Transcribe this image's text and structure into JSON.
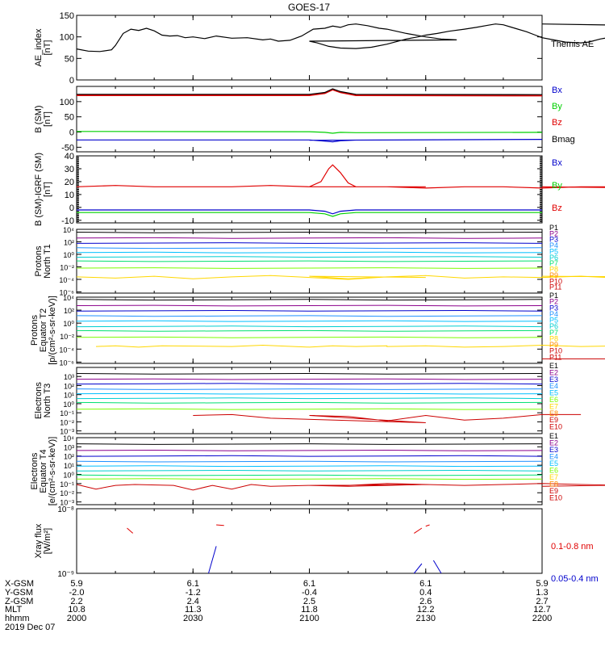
{
  "title": "GOES-17",
  "colors": {
    "black": "#000000",
    "red": "#e00000",
    "green": "#00d000",
    "blue": "#0000cc",
    "darkred": "#8b0000",
    "channels": [
      "#000000",
      "#8b008b",
      "#0000cd",
      "#1e90ff",
      "#00bfff",
      "#00ced1",
      "#00e070",
      "#7cfc00",
      "#ffd700",
      "#ff8c00",
      "#cc0000"
    ]
  },
  "chart_data": [
    {
      "type": "line",
      "panel": "ae",
      "ylabel": "AE_index\n[nT]",
      "ylim": [
        0,
        150
      ],
      "yticks": [
        0,
        50,
        100,
        150
      ],
      "legend": [
        {
          "label": "Themis AE",
          "color": "#000000"
        }
      ],
      "series": [
        {
          "name": "Themis AE",
          "color": "#000000",
          "x": [
            2000,
            2003,
            2006,
            2009,
            2010,
            2012,
            2014,
            2016,
            2018,
            2020,
            2022,
            2024,
            2026,
            2028,
            2030,
            2033,
            2036,
            2040,
            2044,
            2048,
            2050,
            2052,
            2055,
            2058,
            2061,
            2064,
            2066,
            2068,
            2070,
            2072,
            2075,
            2078,
            2080,
            2085,
            2090,
            2094,
            2098,
            2100,
            2102,
            2105,
            2108,
            2112,
            2116,
            2120,
            2125,
            2128,
            2130,
            2133,
            2136,
            2140,
            2143,
            2146,
            2148,
            2150,
            2153,
            2156,
            2158,
            2160,
            2163,
            2166,
            2170,
            2172,
            2175,
            2178,
            2180,
            2184,
            2188,
            2192,
            2196,
            2200
          ],
          "y": [
            72,
            67,
            66,
            70,
            80,
            108,
            118,
            115,
            120,
            114,
            104,
            102,
            103,
            98,
            100,
            96,
            102,
            97,
            98,
            93,
            95,
            90,
            92,
            102,
            118,
            120,
            125,
            122,
            128,
            130,
            126,
            120,
            118,
            108,
            100,
            95,
            93,
            90,
            86,
            78,
            74,
            73,
            76,
            83,
            95,
            100,
            104,
            108,
            113,
            118,
            122,
            127,
            130,
            128,
            120,
            112,
            105,
            98,
            93,
            88,
            86,
            88,
            95,
            100,
            90,
            96,
            104,
            118,
            125,
            130
          ]
        }
      ]
    },
    {
      "type": "line",
      "panel": "b_sm",
      "ylabel": "B (SM)\n[nT]",
      "ylim": [
        -65,
        150
      ],
      "yticks": [
        -50,
        0,
        50,
        100
      ],
      "legend": [
        {
          "label": "Bx",
          "color": "#0000cc"
        },
        {
          "label": "By",
          "color": "#00d000"
        },
        {
          "label": "Bz",
          "color": "#e00000"
        },
        {
          "label": "Bmag",
          "color": "#000000"
        }
      ],
      "series": [
        {
          "name": "Bz",
          "color": "#e00000",
          "x": [
            2000,
            2060,
            2064,
            2066,
            2068,
            2072,
            2200
          ],
          "y": [
            121,
            121,
            128,
            140,
            131,
            121,
            120
          ]
        },
        {
          "name": "Bmag",
          "color": "#000000",
          "x": [
            2000,
            2060,
            2064,
            2066,
            2068,
            2072,
            2200
          ],
          "y": [
            124,
            124,
            130,
            142,
            133,
            124,
            123
          ]
        },
        {
          "name": "By",
          "color": "#00d000",
          "x": [
            2000,
            2060,
            2064,
            2066,
            2068,
            2072,
            2200
          ],
          "y": [
            2,
            1,
            -1,
            -4,
            -1,
            -2,
            -1
          ]
        },
        {
          "name": "Bx",
          "color": "#0000cc",
          "x": [
            2000,
            2030,
            2060,
            2064,
            2066,
            2068,
            2072,
            2100,
            2200
          ],
          "y": [
            -26,
            -26,
            -26,
            -30,
            -32,
            -29,
            -27,
            -27,
            -24
          ]
        }
      ]
    },
    {
      "type": "line",
      "panel": "b_igrf",
      "ylabel": "B (SM)-IGRF (SM)\n[nT]",
      "ylim": [
        -12,
        40
      ],
      "yticks": [
        -10,
        0,
        10,
        20,
        30,
        40
      ],
      "minor": true,
      "legend": [
        {
          "label": "Bx",
          "color": "#0000cc"
        },
        {
          "label": "By",
          "color": "#00d000"
        },
        {
          "label": "Bz",
          "color": "#e00000"
        }
      ],
      "series": [
        {
          "name": "Bz",
          "color": "#e00000",
          "x": [
            2000,
            2010,
            2020,
            2030,
            2040,
            2050,
            2060,
            2063,
            2065,
            2066,
            2068,
            2070,
            2072,
            2080,
            2090,
            2100,
            2110,
            2120,
            2130,
            2140,
            2150,
            2160,
            2170,
            2180,
            2190,
            2200
          ],
          "y": [
            16,
            17,
            16,
            16,
            16,
            17,
            16,
            20,
            30,
            33,
            27,
            19,
            16,
            16,
            16,
            16,
            16,
            16,
            15,
            16,
            16,
            15,
            16,
            16,
            15,
            16
          ]
        },
        {
          "name": "Bx",
          "color": "#0000cc",
          "x": [
            2000,
            2020,
            2040,
            2060,
            2064,
            2066,
            2068,
            2072,
            2090,
            2120,
            2150,
            2200
          ],
          "y": [
            -2,
            -2,
            -2,
            -2,
            -3,
            -5,
            -3,
            -2,
            -2,
            -2,
            -2,
            -2
          ]
        },
        {
          "name": "By",
          "color": "#00d000",
          "x": [
            2000,
            2020,
            2040,
            2060,
            2064,
            2066,
            2068,
            2072,
            2090,
            2120,
            2150,
            2200
          ],
          "y": [
            -4,
            -4,
            -4,
            -4,
            -5,
            -7,
            -5,
            -4,
            -4,
            -4,
            -4,
            -4
          ]
        }
      ]
    },
    {
      "type": "line",
      "panel": "protons_t1",
      "ylabel": "Protons\nNorth T1",
      "log": true,
      "ylim_exp": [
        -6.2,
        4
      ],
      "yticks_exp": [
        -6,
        -4,
        -2,
        0,
        2,
        4
      ],
      "legend": [
        {
          "label": "P1",
          "color": "#000000"
        },
        {
          "label": "P2",
          "color": "#8b008b"
        },
        {
          "label": "P3",
          "color": "#0000cd"
        },
        {
          "label": "P4",
          "color": "#1e90ff"
        },
        {
          "label": "P5",
          "color": "#00bfff"
        },
        {
          "label": "P6",
          "color": "#00ced1"
        },
        {
          "label": "P7",
          "color": "#00e070"
        },
        {
          "label": "P8",
          "color": "#ffd700"
        },
        {
          "label": "P9",
          "color": "#ff8c00"
        },
        {
          "label": "P10",
          "color": "#cc0000"
        },
        {
          "label": "P11",
          "color": "#cc0000"
        }
      ],
      "levels_exp": [
        3.5,
        2.6,
        1.8,
        1.0,
        0.3,
        -0.4,
        -1.1,
        -2.2
      ],
      "noisy": [
        {
          "base": -3.6,
          "color": "#ffd700",
          "x": [
            2000,
            2010,
            2020,
            2030,
            2040,
            2050,
            2060,
            2070,
            2080,
            2090,
            2100,
            2110,
            2120,
            2130,
            2140,
            2150,
            2160,
            2170,
            2180,
            2190,
            2200
          ],
          "y": [
            -3.6,
            -3.8,
            -3.5,
            -3.9,
            -3.6,
            -3.4,
            -3.7,
            -4.0,
            -3.6,
            -3.7,
            -3.5,
            -3.9,
            -3.6,
            -3.4,
            -3.8,
            -3.6,
            -3.7,
            -3.5,
            -3.8,
            -3.6,
            -3.5
          ]
        }
      ]
    },
    {
      "type": "line",
      "panel": "protons_t2",
      "ylabel": "Protons\nEquator T2\n[p/(cm²-s-sr-keV)]",
      "log": true,
      "ylim_exp": [
        -6.2,
        4
      ],
      "yticks_exp": [
        -6,
        -4,
        -2,
        0,
        2,
        4
      ],
      "legend": [
        {
          "label": "P1",
          "color": "#000000"
        },
        {
          "label": "P2",
          "color": "#8b008b"
        },
        {
          "label": "P3",
          "color": "#0000cd"
        },
        {
          "label": "P4",
          "color": "#1e90ff"
        },
        {
          "label": "P5",
          "color": "#00bfff"
        },
        {
          "label": "P6",
          "color": "#00ced1"
        },
        {
          "label": "P7",
          "color": "#00e070"
        },
        {
          "label": "P8",
          "color": "#ffd700"
        },
        {
          "label": "P9",
          "color": "#ff8c00"
        },
        {
          "label": "P10",
          "color": "#cc0000"
        },
        {
          "label": "P11",
          "color": "#cc0000"
        }
      ],
      "levels_exp": [
        3.6,
        2.7,
        1.9,
        1.1,
        0.3,
        -0.5,
        -1.2,
        -2.2
      ],
      "noisy": [
        {
          "base": -3.6,
          "color": "#ffd700",
          "x": [
            2005,
            2010,
            2016,
            2022,
            2040,
            2048,
            2060,
            2066,
            2072,
            2080,
            2120,
            2130,
            2140,
            2150,
            2160,
            2170,
            2180,
            2186
          ],
          "y": [
            -3.6,
            -3.5,
            -3.7,
            -3.5,
            -3.6,
            -3.4,
            -3.7,
            -3.5,
            -3.6,
            -3.5,
            -3.6,
            -3.5,
            -3.7,
            -3.6,
            -3.4,
            -3.6,
            -3.5,
            -3.6
          ]
        },
        {
          "base": -5.5,
          "color": "#cc0000",
          "x": [
            2195,
            2200
          ],
          "y": [
            -5.5,
            -5.5
          ]
        }
      ]
    },
    {
      "type": "line",
      "panel": "electrons_t3",
      "ylabel": "Electrons\nNorth T3",
      "log": true,
      "ylim_exp": [
        -3.3,
        4
      ],
      "yticks_exp": [
        -3,
        -2,
        -1,
        0,
        1,
        2,
        3
      ],
      "legend": [
        {
          "label": "E1",
          "color": "#000000"
        },
        {
          "label": "E2",
          "color": "#8b008b"
        },
        {
          "label": "E3",
          "color": "#0000cd"
        },
        {
          "label": "E4",
          "color": "#1e90ff"
        },
        {
          "label": "E5",
          "color": "#00bfff"
        },
        {
          "label": "E6",
          "color": "#7cfc00"
        },
        {
          "label": "E7",
          "color": "#ffd700"
        },
        {
          "label": "E8",
          "color": "#ff8c00"
        },
        {
          "label": "E9",
          "color": "#cc0000"
        },
        {
          "label": "E10",
          "color": "#cc0000"
        }
      ],
      "levels_exp": [
        3.3,
        2.7,
        2.2,
        1.6,
        1.1,
        0.6,
        0.1,
        -0.6
      ],
      "noisy": [
        {
          "base": -1.6,
          "color": "#cc0000",
          "x": [
            2030,
            2040,
            2050,
            2090,
            2100,
            2110,
            2120,
            2130,
            2140,
            2150,
            2160,
            2170
          ],
          "y": [
            -1.3,
            -1.2,
            -1.6,
            -2.1,
            -1.3,
            -1.4,
            -1.9,
            -1.3,
            -1.8,
            -1.6,
            -1.2,
            -1.2
          ]
        }
      ]
    },
    {
      "type": "line",
      "panel": "electrons_t4",
      "ylabel": "Electrons\nEquator T4\n[e/(cm²-s-sr-keV)]",
      "log": true,
      "ylim_exp": [
        -3.3,
        4
      ],
      "yticks_exp": [
        -3,
        -2,
        -1,
        0,
        1,
        2,
        3,
        4
      ],
      "legend": [
        {
          "label": "E1",
          "color": "#000000"
        },
        {
          "label": "E2",
          "color": "#8b008b"
        },
        {
          "label": "E3",
          "color": "#0000cd"
        },
        {
          "label": "E4",
          "color": "#1e90ff"
        },
        {
          "label": "E5",
          "color": "#00bfff"
        },
        {
          "label": "E6",
          "color": "#7cfc00"
        },
        {
          "label": "E7",
          "color": "#ffd700"
        },
        {
          "label": "E8",
          "color": "#ff8c00"
        },
        {
          "label": "E9",
          "color": "#cc0000"
        },
        {
          "label": "E10",
          "color": "#cc0000"
        }
      ],
      "levels_exp": [
        3.3,
        2.6,
        2.0,
        1.4,
        0.9,
        0.4,
        -0.1,
        -0.5
      ],
      "noisy": [
        {
          "base": -1.4,
          "color": "#cc0000",
          "x": [
            2000,
            2005,
            2010,
            2015,
            2025,
            2030,
            2035,
            2040,
            2045,
            2050,
            2060,
            2070,
            2080,
            2090,
            2100,
            2110,
            2120,
            2130,
            2140,
            2150,
            2160,
            2170,
            2180,
            2190,
            2200
          ],
          "y": [
            -1.1,
            -1.6,
            -1.2,
            -1.1,
            -1.2,
            -1.7,
            -1.2,
            -1.6,
            -1.1,
            -1.3,
            -1.2,
            -1.3,
            -1.2,
            -1.1,
            -1.2,
            -1.2,
            -1.0,
            -1.1,
            -1.2,
            -1.1,
            -1.0,
            -1.1,
            -1.2,
            -1.1,
            -1.3
          ]
        }
      ]
    },
    {
      "type": "line",
      "panel": "xray",
      "ylabel": "Xray flux\n[W/m²]",
      "log": true,
      "ylim_exp": [
        -9,
        -8
      ],
      "ytick_labels": [
        "10⁻⁹",
        "10⁻⁸"
      ],
      "legend": [
        {
          "label": "0.1-0.8 nm",
          "color": "#e00000"
        },
        {
          "label": "0.05-0.4 nm",
          "color": "#0000cc"
        }
      ],
      "segments": [
        {
          "color": "#e00000",
          "x": [
            2013,
            2014.5
          ],
          "y": [
            -8.3,
            -8.38
          ]
        },
        {
          "color": "#e00000",
          "x": [
            2036,
            2038
          ],
          "y": [
            -8.25,
            -8.26
          ]
        },
        {
          "color": "#e00000",
          "x": [
            2087,
            2089
          ],
          "y": [
            -8.38,
            -8.3
          ]
        },
        {
          "color": "#e00000",
          "x": [
            2130,
            2131
          ],
          "y": [
            -8.27,
            -8.25
          ]
        },
        {
          "color": "#e00000",
          "x": [
            2197,
            2199
          ],
          "y": [
            -8.4,
            -8.3
          ]
        },
        {
          "color": "#0000cc",
          "x": [
            2034,
            2036
          ],
          "y": [
            -9.0,
            -8.58
          ]
        },
        {
          "color": "#0000cc",
          "x": [
            2087,
            2089
          ],
          "y": [
            -9.0,
            -8.85
          ]
        },
        {
          "color": "#0000cc",
          "x": [
            2132,
            2134
          ],
          "y": [
            -8.8,
            -9.0
          ]
        },
        {
          "color": "#0000cc",
          "x": [
            2196,
            2198
          ],
          "y": [
            -8.55,
            -9.0
          ]
        }
      ]
    }
  ],
  "xaxis": {
    "xlim": [
      2000,
      2200
    ],
    "ticks": [
      2000,
      2030,
      2100,
      2130,
      2200
    ],
    "row_labels": [
      "X-GSM",
      "Y-GSM",
      "Z-GSM",
      "MLT",
      "hhmm"
    ],
    "rows": [
      [
        "5.9",
        "6.1",
        "6.1",
        "6.1",
        "5.9"
      ],
      [
        "-2.0",
        "-1.2",
        "-0.4",
        "0.4",
        "1.3"
      ],
      [
        "2.2",
        "2.4",
        "2.5",
        "2.6",
        "2.7"
      ],
      [
        "10.8",
        "11.3",
        "11.8",
        "12.2",
        "12.7"
      ],
      [
        "2000",
        "2030",
        "2100",
        "2130",
        "2200"
      ]
    ],
    "date": "2019 Dec 07"
  }
}
